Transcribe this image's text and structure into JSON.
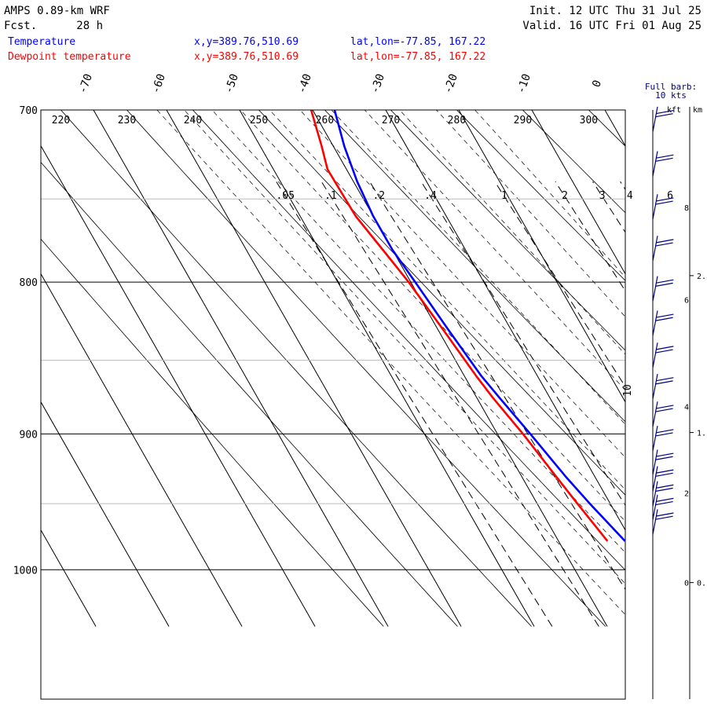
{
  "header": {
    "model": "AMPS 0.89-km WRF",
    "fcst_label": "Fcst.",
    "fcst_value": "28 h",
    "init": "Init. 12 UTC Thu 31 Jul 25",
    "valid": "Valid. 16 UTC Fri 01 Aug 25",
    "legend": [
      {
        "name": "Temperature",
        "loc": "x,y=389.76,510.69",
        "latlon": "lat,lon=-77.85, 167.22",
        "color": "#0000ff"
      },
      {
        "name": "Dewpoint temperature",
        "loc": "x,y=389.76,510.69",
        "latlon": "lat,lon=-77.85, 167.22",
        "color": "#ff0000"
      }
    ]
  },
  "barb_panel": {
    "title": "Full barb:",
    "title2": "10 kts",
    "kft_label": "kft",
    "km_label": "km",
    "kft_ticks": [
      {
        "label": "8",
        "p": 755
      },
      {
        "label": "6",
        "p": 811
      },
      {
        "label": "4",
        "p": 881
      },
      {
        "label": "2",
        "p": 942
      },
      {
        "label": "0",
        "p": 1010
      }
    ],
    "km_ticks": [
      {
        "label": "2.",
        "p": 796
      },
      {
        "label": "1.",
        "p": 899
      },
      {
        "label": "0.",
        "p": 1010
      }
    ],
    "barbs": [
      {
        "p": 712,
        "knots": 20
      },
      {
        "p": 737,
        "knots": 20
      },
      {
        "p": 762,
        "knots": 20
      },
      {
        "p": 787,
        "knots": 20
      },
      {
        "p": 812,
        "knots": 20
      },
      {
        "p": 834,
        "knots": 20
      },
      {
        "p": 855,
        "knots": 20
      },
      {
        "p": 876,
        "knots": 20
      },
      {
        "p": 895,
        "knots": 20
      },
      {
        "p": 912,
        "knots": 20
      },
      {
        "p": 929,
        "knots": 20
      },
      {
        "p": 941,
        "knots": 20
      },
      {
        "p": 952,
        "knots": 20
      },
      {
        "p": 962,
        "knots": 20
      },
      {
        "p": 973,
        "knots": 20
      }
    ]
  },
  "chart_data": {
    "type": "line",
    "title": "AMPS 0.89-km WRF",
    "xlabel": "",
    "ylabel": "",
    "y_scale": "log-pressure",
    "ylim": [
      1045,
      700
    ],
    "pressure_labels": [
      700,
      800,
      900,
      1000
    ],
    "gray_isobars": [
      750,
      850,
      950
    ],
    "isotherm_labels": [
      -70,
      -60,
      -50,
      -40,
      -30,
      -20,
      -10,
      0,
      10
    ],
    "dry_adiabat_labels": [
      220,
      230,
      240,
      250,
      260,
      270,
      280,
      290,
      300
    ],
    "mixing_ratio_labels": [
      ".05",
      ".1",
      ".2",
      ".4",
      "1",
      "2",
      "3",
      "4",
      "6"
    ],
    "series": [
      {
        "name": "Temperature",
        "color": "#0000ff",
        "points": [
          [
            700,
            -37.0
          ],
          [
            720,
            -38.5
          ],
          [
            740,
            -39.5
          ],
          [
            760,
            -40.0
          ],
          [
            780,
            -40.0
          ],
          [
            800,
            -39.4
          ],
          [
            830,
            -38.6
          ],
          [
            860,
            -37.7
          ],
          [
            875,
            -36.9
          ],
          [
            900,
            -35.5
          ],
          [
            930,
            -34.0
          ],
          [
            950,
            -32.8
          ],
          [
            978,
            -30.9
          ]
        ]
      },
      {
        "name": "Dewpoint temperature",
        "color": "#ff0000",
        "points": [
          [
            700,
            -40.2
          ],
          [
            720,
            -41.6
          ],
          [
            733,
            -42.6
          ],
          [
            760,
            -42.4
          ],
          [
            790,
            -40.8
          ],
          [
            800,
            -40.3
          ],
          [
            830,
            -39.3
          ],
          [
            860,
            -38.4
          ],
          [
            875,
            -37.8
          ],
          [
            900,
            -36.5
          ],
          [
            930,
            -35.3
          ],
          [
            950,
            -34.5
          ],
          [
            978,
            -33.3
          ]
        ]
      }
    ]
  }
}
